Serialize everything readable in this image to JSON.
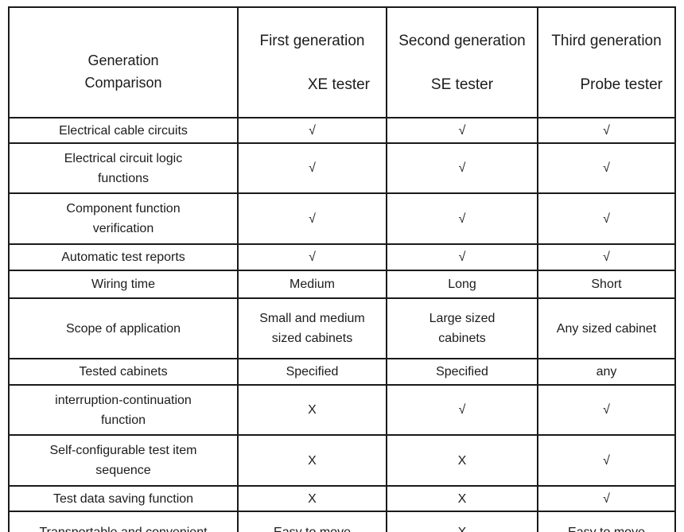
{
  "table": {
    "corner_lines": [
      "Generation",
      "Comparison"
    ],
    "columns": [
      {
        "generation": "First generation",
        "tester": "XE tester"
      },
      {
        "generation": "Second generation",
        "tester": "SE tester"
      },
      {
        "generation": "Third generation",
        "tester": "Probe tester"
      }
    ],
    "rows": [
      {
        "label": [
          "Electrical cable circuits"
        ],
        "values": [
          "√",
          "√",
          "√"
        ]
      },
      {
        "label": [
          "Electrical circuit logic",
          "functions"
        ],
        "values": [
          "√",
          "√",
          "√"
        ]
      },
      {
        "label": [
          "Component function",
          "verification"
        ],
        "values": [
          "√",
          "√",
          "√"
        ]
      },
      {
        "label": [
          "Automatic test reports"
        ],
        "values": [
          "√",
          "√",
          "√"
        ]
      },
      {
        "label": [
          "Wiring time"
        ],
        "values": [
          "Medium",
          "Long",
          "Short"
        ]
      },
      {
        "label": [
          "Scope of application"
        ],
        "values": [
          [
            "Small and medium",
            "sized cabinets"
          ],
          [
            "Large sized",
            "cabinets"
          ],
          "Any sized cabinet"
        ]
      },
      {
        "label": [
          "Tested cabinets"
        ],
        "values": [
          "Specified",
          "Specified",
          "any"
        ]
      },
      {
        "label": [
          "interruption-continuation",
          "function"
        ],
        "values": [
          "X",
          "√",
          "√"
        ]
      },
      {
        "label": [
          "Self-configurable test item",
          "sequence"
        ],
        "values": [
          "X",
          "X",
          "√"
        ]
      },
      {
        "label": [
          "Test data saving function"
        ],
        "values": [
          "X",
          "X",
          "√"
        ]
      },
      {
        "label": [
          "Transportable and convenient"
        ],
        "values": [
          "Easy to move",
          "X",
          "Easy to move"
        ]
      }
    ],
    "symbols": {
      "supported": "√",
      "not_supported": "X"
    },
    "colors": {
      "text": "#1c1c1c",
      "border": "#1a1a1a",
      "background": "#ffffff"
    }
  }
}
